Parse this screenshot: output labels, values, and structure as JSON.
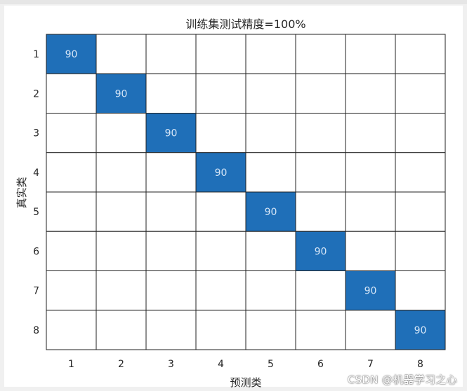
{
  "chart_data": {
    "type": "heatmap",
    "title": "训练集测试精度=100%",
    "xlabel": "预测类",
    "ylabel": "真实类",
    "x_categories": [
      "1",
      "2",
      "3",
      "4",
      "5",
      "6",
      "7",
      "8"
    ],
    "y_categories": [
      "1",
      "2",
      "3",
      "4",
      "5",
      "6",
      "7",
      "8"
    ],
    "matrix": [
      [
        90,
        0,
        0,
        0,
        0,
        0,
        0,
        0
      ],
      [
        0,
        90,
        0,
        0,
        0,
        0,
        0,
        0
      ],
      [
        0,
        0,
        90,
        0,
        0,
        0,
        0,
        0
      ],
      [
        0,
        0,
        0,
        90,
        0,
        0,
        0,
        0
      ],
      [
        0,
        0,
        0,
        0,
        90,
        0,
        0,
        0
      ],
      [
        0,
        0,
        0,
        0,
        0,
        90,
        0,
        0
      ],
      [
        0,
        0,
        0,
        0,
        0,
        0,
        90,
        0
      ],
      [
        0,
        0,
        0,
        0,
        0,
        0,
        0,
        90
      ]
    ],
    "show_zero_cells": false,
    "colors": {
      "filled": "#1f6fb8",
      "empty": "#ffffff",
      "grid": "#222222",
      "filled_text": "#d6e6f7",
      "axis_text": "#262626"
    }
  },
  "watermark": "CSDN @机器学习之心"
}
